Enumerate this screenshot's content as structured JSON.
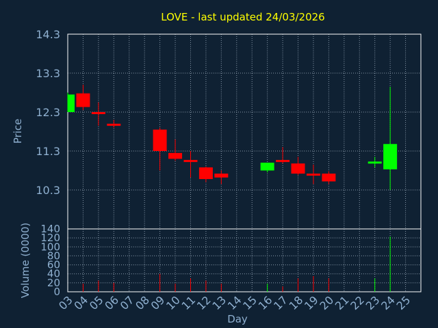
{
  "chart_data": {
    "type": "candlestick",
    "title": "LOVE - last updated 24/03/2026",
    "xlabel": "Day",
    "ylabel": "Price",
    "volume_label": "Volume (0000)",
    "price_ticks": [
      "14.3",
      "13.3",
      "12.3",
      "11.3",
      "10.3"
    ],
    "price_tick_values": [
      14.3,
      13.3,
      12.3,
      11.3,
      10.3
    ],
    "price_range": [
      9.3,
      14.3
    ],
    "volume_ticks": [
      "140",
      "120",
      "100",
      "80",
      "60",
      "40",
      "20",
      "0"
    ],
    "volume_tick_values": [
      140,
      120,
      100,
      80,
      60,
      40,
      20,
      0
    ],
    "volume_range": [
      0,
      140
    ],
    "x_labels": [
      "03",
      "04",
      "05",
      "06",
      "07",
      "08",
      "09",
      "10",
      "11",
      "12",
      "13",
      "14",
      "15",
      "16",
      "17",
      "18",
      "19",
      "20",
      "21",
      "22",
      "23",
      "24",
      "25"
    ],
    "grid": true,
    "colors": {
      "background": "#0f2133",
      "axis_text": "#8fb0d0",
      "title": "#ffff00",
      "frame": "#ffffff",
      "grid": "#8899aa",
      "up": "#00ff00",
      "down": "#ff0000"
    },
    "candles": [
      {
        "day": "03",
        "open": 12.3,
        "high": 12.8,
        "low": 12.3,
        "close": 12.75,
        "volume": 0
      },
      {
        "day": "04",
        "open": 12.78,
        "high": 13.0,
        "low": 12.35,
        "close": 12.43,
        "volume": 18
      },
      {
        "day": "05",
        "open": 12.3,
        "high": 12.55,
        "low": 11.95,
        "close": 12.27,
        "volume": 25
      },
      {
        "day": "06",
        "open": 12.0,
        "high": 12.1,
        "low": 11.9,
        "close": 11.95,
        "volume": 20
      },
      {
        "day": "09",
        "open": 11.85,
        "high": 11.9,
        "low": 10.8,
        "close": 11.3,
        "volume": 40
      },
      {
        "day": "10",
        "open": 11.25,
        "high": 11.6,
        "low": 11.05,
        "close": 11.1,
        "volume": 18
      },
      {
        "day": "11",
        "open": 11.07,
        "high": 11.3,
        "low": 10.62,
        "close": 11.05,
        "volume": 30
      },
      {
        "day": "12",
        "open": 10.88,
        "high": 10.9,
        "low": 10.5,
        "close": 10.58,
        "volume": 25
      },
      {
        "day": "13",
        "open": 10.72,
        "high": 10.8,
        "low": 10.45,
        "close": 10.62,
        "volume": 18
      },
      {
        "day": "16",
        "open": 10.8,
        "high": 11.0,
        "low": 10.75,
        "close": 11.0,
        "volume": 18
      },
      {
        "day": "17",
        "open": 11.07,
        "high": 11.4,
        "low": 10.98,
        "close": 11.05,
        "volume": 12
      },
      {
        "day": "18",
        "open": 10.98,
        "high": 11.15,
        "low": 10.68,
        "close": 10.72,
        "volume": 30
      },
      {
        "day": "19",
        "open": 10.72,
        "high": 10.95,
        "low": 10.45,
        "close": 10.7,
        "volume": 35
      },
      {
        "day": "20",
        "open": 10.72,
        "high": 10.78,
        "low": 10.45,
        "close": 10.52,
        "volume": 30
      },
      {
        "day": "23",
        "open": 10.98,
        "high": 11.15,
        "low": 10.88,
        "close": 11.03,
        "volume": 30
      },
      {
        "day": "24",
        "open": 10.83,
        "high": 12.95,
        "low": 10.3,
        "close": 11.48,
        "volume": 123
      }
    ]
  }
}
